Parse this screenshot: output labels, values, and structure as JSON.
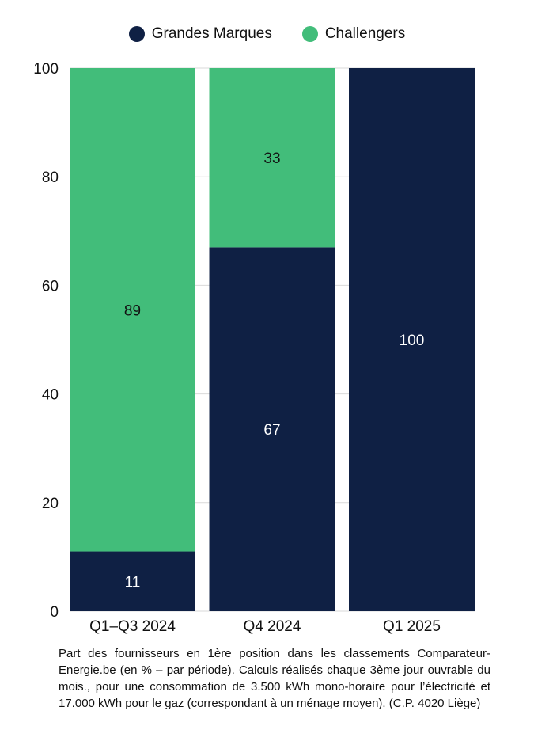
{
  "chart_data": {
    "type": "bar",
    "stacked": true,
    "categories": [
      "Q1–Q3 2024",
      "Q4 2024",
      "Q1 2025"
    ],
    "series": [
      {
        "name": "Grandes Marques",
        "values": [
          11,
          67,
          100
        ],
        "color": "#0f2044",
        "label_color": "#ffffff"
      },
      {
        "name": "Challengers",
        "values": [
          89,
          33,
          0
        ],
        "color": "#42bd7a",
        "label_color": "#111111"
      }
    ],
    "data_labels": [
      [
        "11",
        "67",
        "100"
      ],
      [
        "89",
        "33",
        ""
      ]
    ],
    "yticks": [
      "0",
      "20",
      "40",
      "60",
      "80",
      "100"
    ],
    "ylim": [
      0,
      100
    ],
    "grid": true,
    "legend_position": "top-center"
  },
  "caption": "Part des fournisseurs en 1ère position dans les classements Comparateur-Energie.be (en % – par période). Calculs réalisés chaque 3ème jour ouvrable du mois., pour une consommation de 3.500 kWh mono-horaire pour l’électricité et 17.000 kWh pour le gaz (correspondant à un ménage moyen). (C.P. 4020 Liège)"
}
